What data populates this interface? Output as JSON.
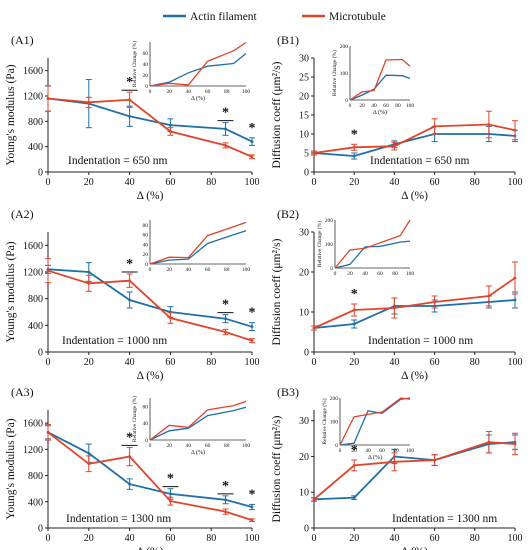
{
  "legend": {
    "entries": [
      {
        "name": "Actin filament",
        "color": "#1f6fa8"
      },
      {
        "name": "Microtubule",
        "color": "#e0452a"
      }
    ]
  },
  "chart_data": [
    {
      "id": "A1",
      "type": "line",
      "panel_label": "(A1)",
      "xlabel": "Δ (%)",
      "ylabel": "Young's modulus (Pa)",
      "xlim": [
        0,
        100
      ],
      "ylim": [
        0,
        1800
      ],
      "xticks": [
        0,
        20,
        40,
        60,
        80,
        100
      ],
      "yticks": [
        0,
        400,
        800,
        1200,
        1600
      ],
      "annotation": "Indentation = 650 nm",
      "series": [
        {
          "name": "Actin filament",
          "color": "#1f6fa8",
          "x": [
            0,
            20,
            40,
            60,
            87,
            100
          ],
          "y": [
            1160,
            1080,
            880,
            740,
            680,
            480
          ],
          "err": [
            200,
            380,
            160,
            100,
            100,
            60
          ]
        },
        {
          "name": "Microtubule",
          "color": "#e0452a",
          "x": [
            0,
            20,
            40,
            60,
            87,
            100
          ],
          "y": [
            1160,
            1100,
            1140,
            640,
            420,
            240
          ],
          "err": [
            200,
            80,
            120,
            60,
            40,
            30
          ]
        }
      ],
      "significance": [
        {
          "x": 40,
          "text": "*",
          "underline": true
        },
        {
          "x": 87,
          "text": "*",
          "underline": true
        },
        {
          "x": 100,
          "text": "*",
          "underline": false
        }
      ],
      "inset": {
        "ylabel": "Relative Change (%)",
        "xlabel": "Δ (%)",
        "xlim": [
          0,
          100
        ],
        "ylim": [
          0,
          80
        ],
        "xticks": [
          0,
          20,
          40,
          60,
          80,
          100
        ],
        "yticks": [
          0,
          20,
          40,
          60
        ],
        "series": [
          {
            "name": "Actin filament",
            "x": [
              0,
              20,
              40,
              60,
              87,
              100
            ],
            "y": [
              0,
              7,
              24,
              36,
              41,
              59
            ]
          },
          {
            "name": "Microtubule",
            "x": [
              0,
              20,
              40,
              60,
              87,
              100
            ],
            "y": [
              0,
              5,
              2,
              45,
              64,
              79
            ]
          }
        ]
      }
    },
    {
      "id": "B1",
      "type": "line",
      "panel_label": "(B1)",
      "xlabel": "Δ (%)",
      "ylabel": "Diffusion coeff (μm²/s)",
      "xlim": [
        0,
        100
      ],
      "ylim": [
        0,
        30
      ],
      "xticks": [
        0,
        20,
        40,
        60,
        80,
        100
      ],
      "yticks": [
        0,
        5,
        10,
        15,
        20,
        25,
        30
      ],
      "annotation": "Indentation = 650 nm",
      "series": [
        {
          "name": "Actin filament",
          "color": "#1f6fa8",
          "x": [
            0,
            20,
            40,
            60,
            87,
            100
          ],
          "y": [
            5,
            4.2,
            7.3,
            10,
            10,
            9.5
          ],
          "err": [
            0.5,
            0.8,
            0.9,
            2,
            2,
            1.5
          ]
        },
        {
          "name": "Microtubule",
          "color": "#e0452a",
          "x": [
            0,
            20,
            40,
            60,
            87,
            100
          ],
          "y": [
            5,
            6.5,
            6.8,
            12,
            12.5,
            11
          ],
          "err": [
            0.5,
            0.8,
            1,
            2,
            3.5,
            2.5
          ]
        }
      ],
      "significance": [
        {
          "x": 20,
          "text": "*",
          "underline": false
        }
      ],
      "inset": {
        "ylabel": "Relative Change (%)",
        "xlabel": "Δ (%)",
        "xlim": [
          0,
          100
        ],
        "ylim": [
          0,
          200
        ],
        "xticks": [
          0,
          20,
          40,
          60,
          80,
          100
        ],
        "yticks": [
          0,
          100,
          200
        ],
        "series": [
          {
            "name": "Actin filament",
            "x": [
              0,
              20,
              40,
              60,
              87,
              100
            ],
            "y": [
              0,
              18,
              40,
              92,
              90,
              80
            ]
          },
          {
            "name": "Microtubule",
            "x": [
              0,
              20,
              40,
              60,
              87,
              100
            ],
            "y": [
              0,
              30,
              35,
              148,
              150,
              125
            ]
          }
        ]
      }
    },
    {
      "id": "A2",
      "type": "line",
      "panel_label": "(A2)",
      "xlabel": "Δ (%)",
      "ylabel": "Young's modulus (Pa)",
      "xlim": [
        0,
        100
      ],
      "ylim": [
        0,
        1800
      ],
      "xticks": [
        0,
        20,
        40,
        60,
        80,
        100
      ],
      "yticks": [
        0,
        400,
        800,
        1200,
        1600
      ],
      "annotation": "Indentation = 1000 nm",
      "series": [
        {
          "name": "Actin filament",
          "color": "#1f6fa8",
          "x": [
            0,
            20,
            40,
            60,
            87,
            100
          ],
          "y": [
            1240,
            1200,
            780,
            600,
            500,
            380
          ],
          "err": [
            60,
            140,
            120,
            80,
            60,
            60
          ]
        },
        {
          "name": "Microtubule",
          "color": "#e0452a",
          "x": [
            0,
            20,
            40,
            60,
            87,
            100
          ],
          "y": [
            1220,
            1030,
            1070,
            510,
            300,
            170
          ],
          "err": [
            180,
            120,
            100,
            80,
            40,
            30
          ]
        }
      ],
      "significance": [
        {
          "x": 40,
          "text": "*",
          "underline": true
        },
        {
          "x": 87,
          "text": "*",
          "underline": true
        },
        {
          "x": 100,
          "text": "*",
          "underline": false
        }
      ],
      "inset": {
        "ylabel": "",
        "xlabel": "",
        "xlim": [
          0,
          100
        ],
        "ylim": [
          0,
          90
        ],
        "xticks": [
          0,
          20,
          40,
          60,
          80,
          100
        ],
        "yticks": [
          0,
          20,
          40,
          60,
          80
        ],
        "series": [
          {
            "name": "Actin filament",
            "x": [
              0,
              20,
              40,
              60,
              87,
              100
            ],
            "y": [
              0,
              8,
              10,
              42,
              60,
              68
            ]
          },
          {
            "name": "Microtubule",
            "x": [
              0,
              20,
              40,
              60,
              87,
              100
            ],
            "y": [
              0,
              14,
              13,
              58,
              76,
              85
            ]
          }
        ]
      }
    },
    {
      "id": "B2",
      "type": "line",
      "panel_label": "(B2)",
      "xlabel": "Δ (%)",
      "ylabel": "Diffusion coeff (μm²/s)",
      "xlim": [
        0,
        100
      ],
      "ylim": [
        0,
        30
      ],
      "xticks": [
        0,
        20,
        40,
        60,
        80,
        100
      ],
      "yticks": [
        0,
        10,
        20,
        30
      ],
      "annotation": "Indentation = 1000 nm",
      "series": [
        {
          "name": "Actin filament",
          "color": "#1f6fa8",
          "x": [
            0,
            20,
            40,
            60,
            87,
            100
          ],
          "y": [
            6,
            7,
            11.5,
            11.5,
            12.5,
            13
          ],
          "err": [
            0.5,
            1,
            2,
            1.5,
            1.5,
            2
          ]
        },
        {
          "name": "Microtubule",
          "color": "#e0452a",
          "x": [
            0,
            20,
            40,
            60,
            87,
            100
          ],
          "y": [
            6,
            10.5,
            11,
            12.5,
            14,
            18.5
          ],
          "err": [
            0.5,
            1.5,
            2.5,
            1.5,
            2.5,
            4
          ]
        }
      ],
      "significance": [
        {
          "x": 20,
          "text": "*",
          "underline": false
        }
      ],
      "inset": {
        "ylabel": "Relative Change (%)",
        "xlabel": "",
        "xlim": [
          0,
          100
        ],
        "ylim": [
          0,
          200
        ],
        "xticks": [
          0,
          20,
          40,
          60,
          80,
          100
        ],
        "yticks": [
          0,
          100,
          200
        ],
        "series": [
          {
            "name": "Actin filament",
            "x": [
              0,
              20,
              40,
              60,
              87,
              100
            ],
            "y": [
              0,
              15,
              88,
              90,
              108,
              112
            ]
          },
          {
            "name": "Microtubule",
            "x": [
              0,
              20,
              40,
              60,
              87,
              100
            ],
            "y": [
              0,
              75,
              82,
              105,
              135,
              200
            ]
          }
        ]
      }
    },
    {
      "id": "A3",
      "type": "line",
      "panel_label": "(A3)",
      "xlabel": "Δ (%)",
      "ylabel": "Young's modulus (Pa)",
      "xlim": [
        0,
        100
      ],
      "ylim": [
        0,
        1800
      ],
      "xticks": [
        0,
        20,
        40,
        60,
        80,
        100
      ],
      "yticks": [
        0,
        400,
        800,
        1200,
        1600
      ],
      "annotation": "Indentation = 1300 nm",
      "series": [
        {
          "name": "Actin filament",
          "color": "#1f6fa8",
          "x": [
            0,
            20,
            40,
            60,
            87,
            100
          ],
          "y": [
            1460,
            1140,
            670,
            520,
            430,
            320
          ],
          "err": [
            100,
            140,
            80,
            80,
            60,
            40
          ]
        },
        {
          "name": "Microtubule",
          "color": "#e0452a",
          "x": [
            0,
            20,
            40,
            60,
            87,
            100
          ],
          "y": [
            1460,
            980,
            1090,
            410,
            250,
            120
          ],
          "err": [
            120,
            120,
            140,
            60,
            40,
            20
          ]
        }
      ],
      "significance": [
        {
          "x": 40,
          "text": "*",
          "underline": true
        },
        {
          "x": 60,
          "text": "*",
          "underline": true
        },
        {
          "x": 87,
          "text": "*",
          "underline": true
        },
        {
          "x": 100,
          "text": "*",
          "underline": false
        }
      ],
      "inset": {
        "ylabel": "Relative Change (%)",
        "xlabel": "Δ (%)",
        "xlim": [
          0,
          100
        ],
        "ylim": [
          0,
          100
        ],
        "xticks": [
          0,
          20,
          40,
          60,
          80,
          100
        ],
        "yticks": [
          0,
          40,
          80
        ],
        "series": [
          {
            "name": "Actin filament",
            "x": [
              0,
              20,
              40,
              60,
              87,
              100
            ],
            "y": [
              0,
              22,
              28,
              58,
              70,
              78
            ]
          },
          {
            "name": "Microtubule",
            "x": [
              0,
              20,
              40,
              60,
              87,
              100
            ],
            "y": [
              0,
              35,
              30,
              72,
              82,
              92
            ]
          }
        ]
      }
    },
    {
      "id": "B3",
      "type": "line",
      "panel_label": "(B3)",
      "xlabel": "Δ (%)",
      "ylabel": "Diffusion coeff (μm²/s)",
      "xlim": [
        0,
        100
      ],
      "ylim": [
        0,
        33
      ],
      "xticks": [
        0,
        20,
        40,
        60,
        80,
        100
      ],
      "yticks": [
        0,
        10,
        20,
        30
      ],
      "annotation": "Indentation = 1300 nm",
      "series": [
        {
          "name": "Actin filament",
          "color": "#1f6fa8",
          "x": [
            0,
            20,
            40,
            60,
            87,
            100
          ],
          "y": [
            8,
            8.5,
            20,
            19,
            23.5,
            24
          ],
          "err": [
            0.5,
            0.5,
            2,
            1.5,
            2.5,
            2
          ]
        },
        {
          "name": "Microtubule",
          "color": "#e0452a",
          "x": [
            0,
            20,
            40,
            60,
            87,
            100
          ],
          "y": [
            8,
            17.5,
            18.5,
            19,
            24,
            23.5
          ],
          "err": [
            0.5,
            1.5,
            2.5,
            1.5,
            3,
            3
          ]
        }
      ],
      "significance": [
        {
          "x": 20,
          "text": "*",
          "underline": false
        }
      ],
      "inset": {
        "ylabel": "Relative Change (%)",
        "xlabel": "Δ (%)",
        "xlim": [
          0,
          100
        ],
        "ylim": [
          0,
          200
        ],
        "xticks": [
          0,
          20,
          40,
          60,
          80,
          100
        ],
        "yticks": [
          0,
          100,
          200
        ],
        "series": [
          {
            "name": "Actin filament",
            "x": [
              0,
              20,
              40,
              60,
              87,
              100
            ],
            "y": [
              0,
              8,
              145,
              135,
              195,
              200
            ]
          },
          {
            "name": "Microtubule",
            "x": [
              0,
              20,
              40,
              60,
              87,
              100
            ],
            "y": [
              0,
              120,
              130,
              140,
              200,
              195
            ]
          }
        ]
      }
    }
  ]
}
